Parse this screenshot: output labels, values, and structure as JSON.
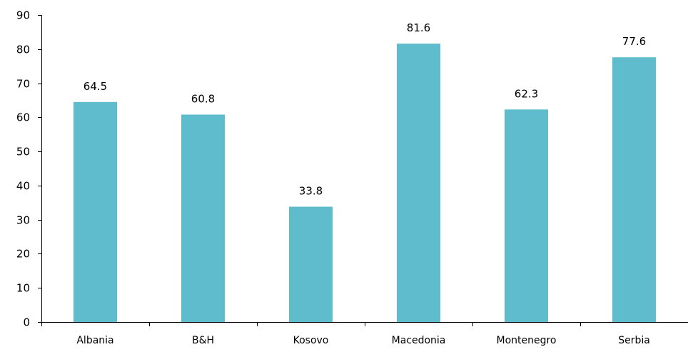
{
  "chart_data": {
    "type": "bar",
    "categories": [
      "Albania",
      "B&H",
      "Kosovo",
      "Macedonia",
      "Montenegro",
      "Serbia"
    ],
    "values": [
      64.5,
      60.8,
      33.8,
      81.6,
      62.3,
      77.6
    ],
    "value_labels": [
      "64.5",
      "60.8",
      "33.8",
      "81.6",
      "62.3",
      "77.6"
    ],
    "title": "",
    "xlabel": "",
    "ylabel": "",
    "ylim": [
      0,
      90
    ],
    "yticks": [
      0,
      10,
      20,
      30,
      40,
      50,
      60,
      70,
      80,
      90
    ],
    "ytick_labels": [
      "0",
      "10",
      "20",
      "30",
      "40",
      "50",
      "60",
      "70",
      "80",
      "90"
    ],
    "grid": false,
    "legend": "none",
    "bar_color": "#5ebccc",
    "axis_color": "#000000"
  }
}
